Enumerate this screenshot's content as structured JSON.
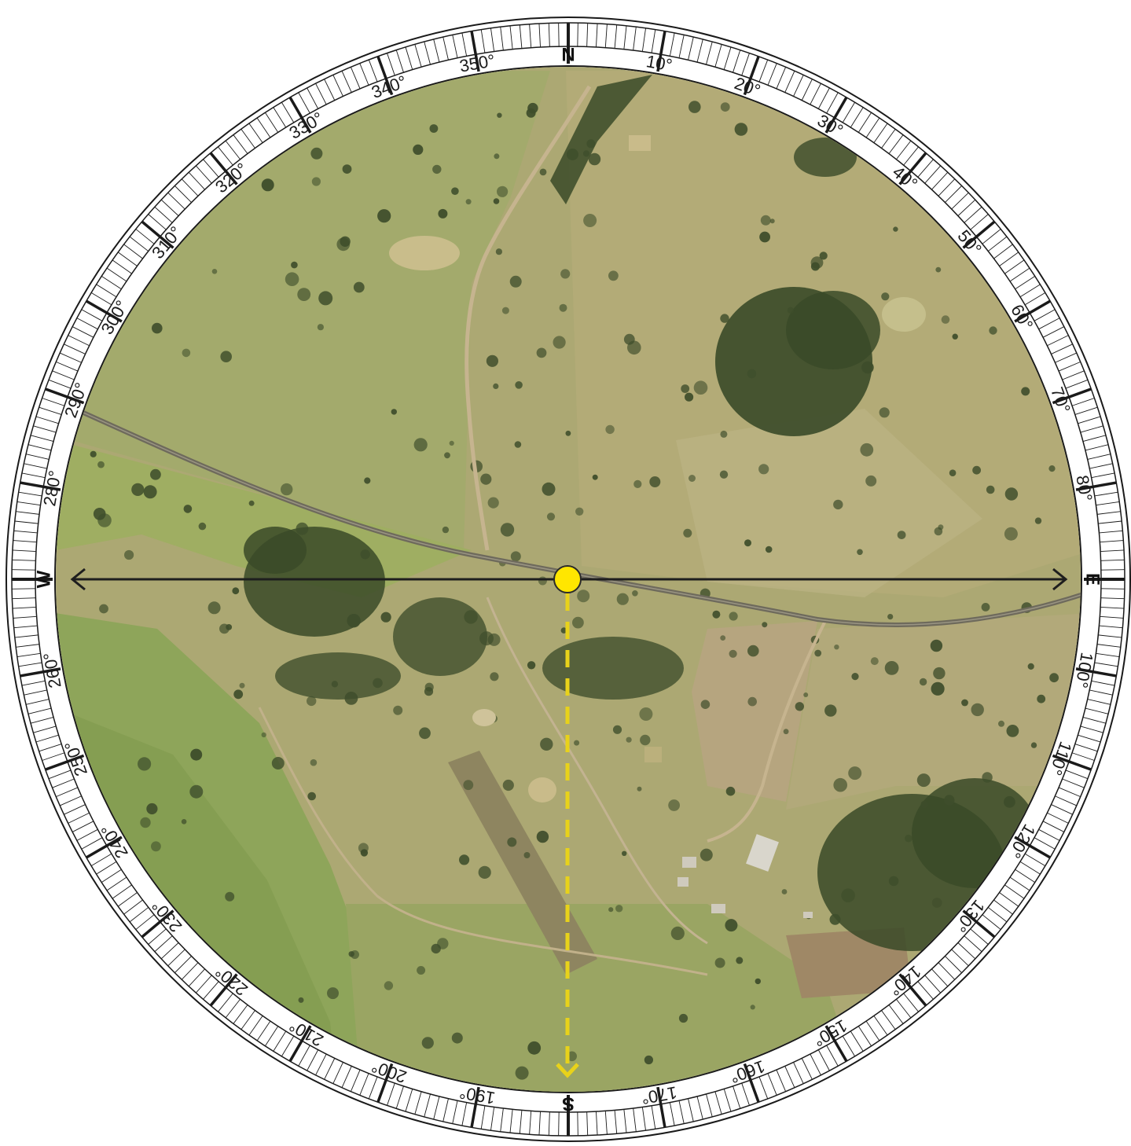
{
  "compass": {
    "cardinals": [
      {
        "key": "north",
        "label": "N",
        "bearing": 0
      },
      {
        "key": "east",
        "label": "E",
        "bearing": 90
      },
      {
        "key": "south",
        "label": "S",
        "bearing": 180
      },
      {
        "key": "west",
        "label": "W",
        "bearing": 270
      }
    ],
    "degree_labels": [
      {
        "bearing": 10,
        "label": "10°"
      },
      {
        "bearing": 20,
        "label": "20°"
      },
      {
        "bearing": 30,
        "label": "30°"
      },
      {
        "bearing": 40,
        "label": "40°"
      },
      {
        "bearing": 50,
        "label": "50°"
      },
      {
        "bearing": 60,
        "label": "60°"
      },
      {
        "bearing": 70,
        "label": "70°"
      },
      {
        "bearing": 80,
        "label": "80°"
      },
      {
        "bearing": 100,
        "label": "100°"
      },
      {
        "bearing": 110,
        "label": "110°"
      },
      {
        "bearing": 120,
        "label": "120°"
      },
      {
        "bearing": 130,
        "label": "130°"
      },
      {
        "bearing": 140,
        "label": "140°"
      },
      {
        "bearing": 150,
        "label": "150°"
      },
      {
        "bearing": 160,
        "label": "160°"
      },
      {
        "bearing": 170,
        "label": "170°"
      },
      {
        "bearing": 190,
        "label": "190°"
      },
      {
        "bearing": 200,
        "label": "200°"
      },
      {
        "bearing": 210,
        "label": "210°"
      },
      {
        "bearing": 220,
        "label": "220°"
      },
      {
        "bearing": 230,
        "label": "230°"
      },
      {
        "bearing": 240,
        "label": "240°"
      },
      {
        "bearing": 250,
        "label": "250°"
      },
      {
        "bearing": 260,
        "label": "260°"
      },
      {
        "bearing": 280,
        "label": "280°"
      },
      {
        "bearing": 290,
        "label": "290°"
      },
      {
        "bearing": 300,
        "label": "300°"
      },
      {
        "bearing": 310,
        "label": "310°"
      },
      {
        "bearing": 320,
        "label": "320°"
      },
      {
        "bearing": 330,
        "label": "330°"
      },
      {
        "bearing": 340,
        "label": "340°"
      },
      {
        "bearing": 350,
        "label": "350°"
      }
    ]
  },
  "map": {
    "kind": "aerial imagery of rural farmland",
    "observer_marker": "yellow-dot",
    "east_west_line": "black double-headed arrow",
    "south_line": "yellow dashed arrow pointing south"
  },
  "colors": {
    "ring_fill": "#ffffff",
    "ring_stroke": "#1a1a1a",
    "marker": "#ffe600",
    "south_arrow": "#e8d21a",
    "ew_arrow": "#1e1e1e",
    "map_base": "#aca873",
    "grass_green": "#8ea55a",
    "road": "#6e6a5c",
    "trees": "#3a4a28"
  }
}
